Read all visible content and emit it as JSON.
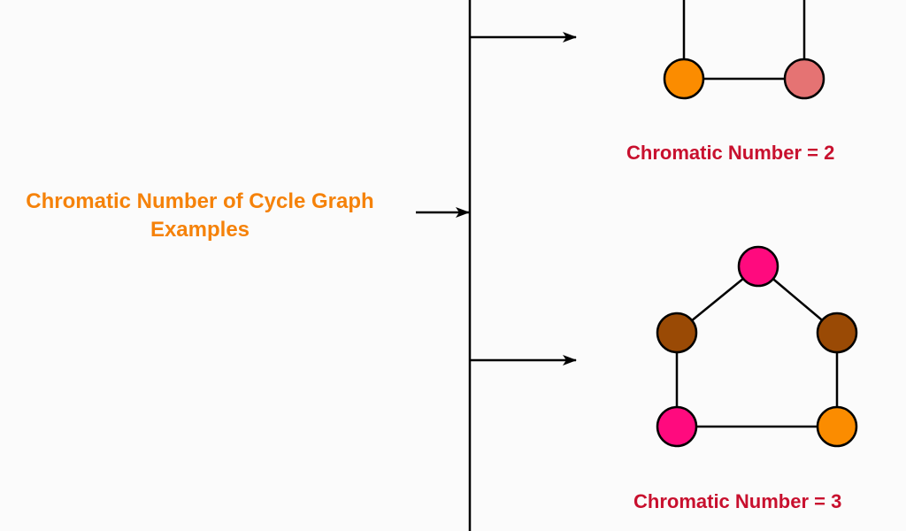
{
  "title": {
    "line1": "Chromatic Number of Cycle Graph",
    "line2": "Examples"
  },
  "examples": [
    {
      "caption": "Chromatic Number = 2"
    },
    {
      "caption": "Chromatic Number = 3"
    }
  ],
  "colors": {
    "title": "#f5820a",
    "caption": "#c8102e",
    "line": "#000000",
    "orange": "#fb8c00",
    "salmon": "#e57373",
    "pink": "#ff0a7e",
    "brown": "#9a4a05"
  }
}
